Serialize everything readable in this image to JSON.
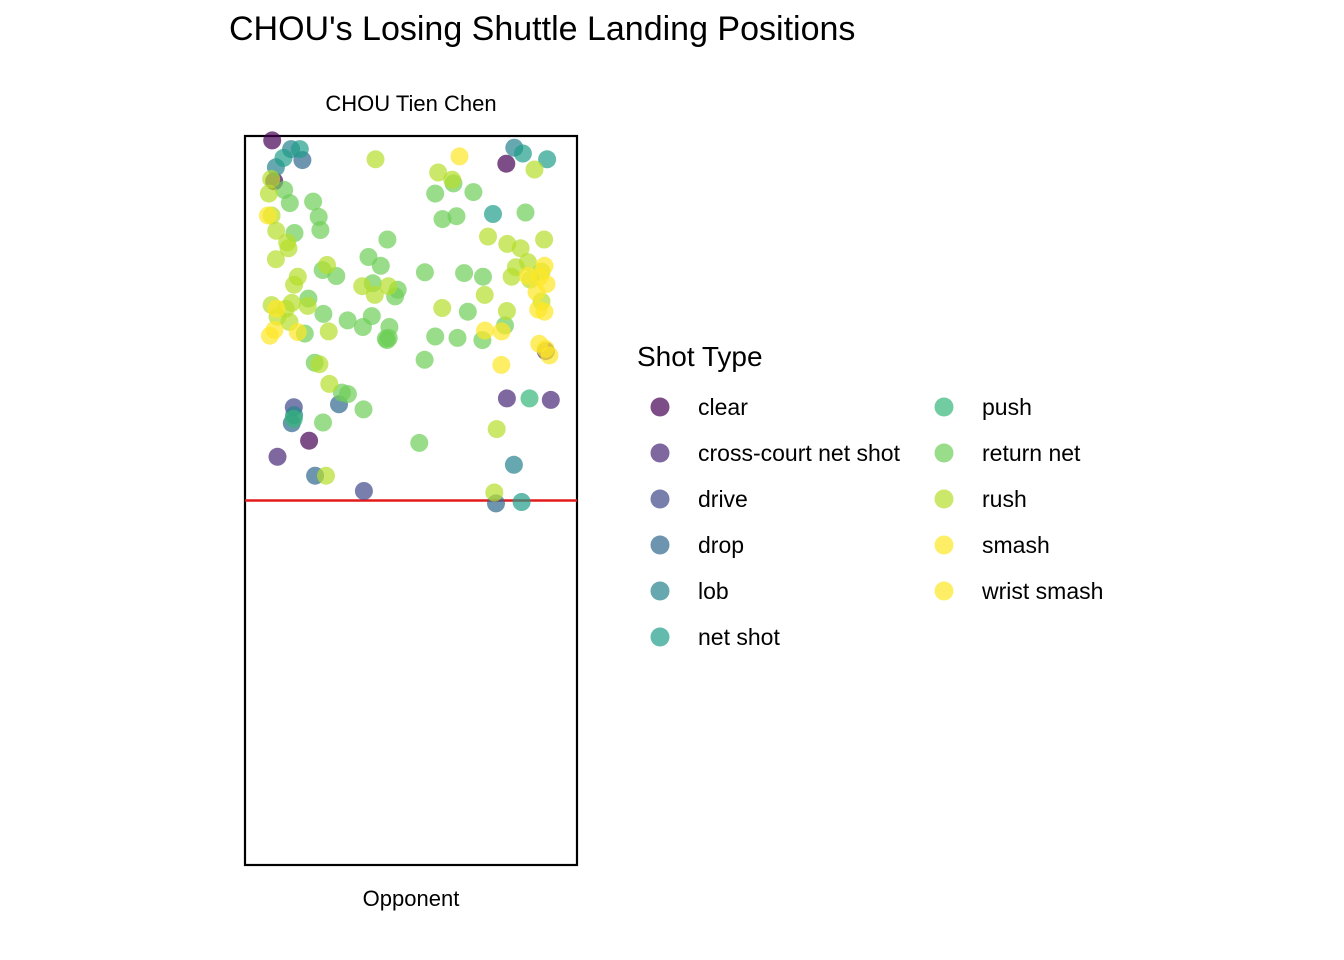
{
  "chart_data": {
    "type": "scatter",
    "title": "CHOU's Losing Shuttle Landing Positions",
    "top_label": "CHOU Tien Chen",
    "bottom_label": "Opponent",
    "xlim": [
      0,
      1
    ],
    "ylim": [
      0,
      1
    ],
    "net_y": 0.5,
    "net_color": "#e41a1c",
    "legend_title": "Shot Type",
    "categories": [
      {
        "name": "clear",
        "color": "#440154"
      },
      {
        "name": "cross-court net shot",
        "color": "#482878"
      },
      {
        "name": "drive",
        "color": "#3e4989"
      },
      {
        "name": "drop",
        "color": "#31688e"
      },
      {
        "name": "lob",
        "color": "#26828e"
      },
      {
        "name": "net shot",
        "color": "#1f9e89"
      },
      {
        "name": "push",
        "color": "#35b779"
      },
      {
        "name": "return net",
        "color": "#6ece58"
      },
      {
        "name": "rush",
        "color": "#b5de2b"
      },
      {
        "name": "smash",
        "color": "#fde725"
      },
      {
        "name": "wrist smash",
        "color": "#fde725"
      }
    ],
    "series": [
      {
        "name": "clear",
        "points": [
          [
            0.082,
            0.994
          ],
          [
            0.088,
            0.938
          ],
          [
            0.193,
            0.582
          ],
          [
            0.787,
            0.962
          ]
        ]
      },
      {
        "name": "cross-court net shot",
        "points": [
          [
            0.098,
            0.56
          ],
          [
            0.906,
            0.705
          ],
          [
            0.789,
            0.64
          ],
          [
            0.921,
            0.638
          ]
        ]
      },
      {
        "name": "drive",
        "points": [
          [
            0.147,
            0.628
          ],
          [
            0.358,
            0.513
          ]
        ]
      },
      {
        "name": "drop",
        "points": [
          [
            0.141,
            0.606
          ],
          [
            0.283,
            0.632
          ],
          [
            0.211,
            0.534
          ],
          [
            0.756,
            0.496
          ],
          [
            0.173,
            0.967
          ]
        ]
      },
      {
        "name": "lob",
        "points": [
          [
            0.093,
            0.957
          ],
          [
            0.139,
            0.982
          ],
          [
            0.811,
            0.984
          ],
          [
            0.148,
            0.617
          ],
          [
            0.81,
            0.549
          ]
        ]
      },
      {
        "name": "net shot",
        "points": [
          [
            0.165,
            0.982
          ],
          [
            0.837,
            0.976
          ],
          [
            0.91,
            0.968
          ],
          [
            0.747,
            0.893
          ],
          [
            0.833,
            0.498
          ],
          [
            0.116,
            0.97
          ]
        ]
      },
      {
        "name": "push",
        "points": [
          [
            0.857,
            0.64
          ],
          [
            0.147,
            0.612
          ]
        ]
      },
      {
        "name": "return net",
        "points": [
          [
            0.227,
            0.871
          ],
          [
            0.118,
            0.926
          ],
          [
            0.135,
            0.908
          ],
          [
            0.149,
            0.867
          ],
          [
            0.205,
            0.91
          ],
          [
            0.222,
            0.889
          ],
          [
            0.573,
            0.921
          ],
          [
            0.628,
            0.935
          ],
          [
            0.688,
            0.923
          ],
          [
            0.595,
            0.886
          ],
          [
            0.637,
            0.89
          ],
          [
            0.845,
            0.895
          ],
          [
            0.429,
            0.858
          ],
          [
            0.372,
            0.834
          ],
          [
            0.409,
            0.822
          ],
          [
            0.542,
            0.813
          ],
          [
            0.66,
            0.812
          ],
          [
            0.717,
            0.807
          ],
          [
            0.452,
            0.78
          ],
          [
            0.234,
            0.816
          ],
          [
            0.275,
            0.808
          ],
          [
            0.191,
            0.777
          ],
          [
            0.236,
            0.756
          ],
          [
            0.309,
            0.747
          ],
          [
            0.355,
            0.738
          ],
          [
            0.573,
            0.725
          ],
          [
            0.64,
            0.723
          ],
          [
            0.715,
            0.72
          ],
          [
            0.783,
            0.74
          ],
          [
            0.435,
            0.738
          ],
          [
            0.424,
            0.722
          ],
          [
            0.21,
            0.689
          ],
          [
            0.31,
            0.646
          ],
          [
            0.357,
            0.625
          ],
          [
            0.433,
            0.723
          ],
          [
            0.541,
            0.693
          ],
          [
            0.235,
            0.607
          ],
          [
            0.525,
            0.579
          ],
          [
            0.428,
            0.72
          ],
          [
            0.385,
            0.798
          ],
          [
            0.46,
            0.789
          ],
          [
            0.671,
            0.759
          ],
          [
            0.18,
            0.729
          ],
          [
            0.292,
            0.648
          ],
          [
            0.382,
            0.753
          ]
        ]
      },
      {
        "name": "rush",
        "points": [
          [
            0.079,
            0.941
          ],
          [
            0.072,
            0.921
          ],
          [
            0.08,
            0.891
          ],
          [
            0.094,
            0.87
          ],
          [
            0.127,
            0.854
          ],
          [
            0.093,
            0.831
          ],
          [
            0.131,
            0.846
          ],
          [
            0.159,
            0.807
          ],
          [
            0.247,
            0.823
          ],
          [
            0.353,
            0.794
          ],
          [
            0.391,
            0.782
          ],
          [
            0.432,
            0.794
          ],
          [
            0.393,
            0.968
          ],
          [
            0.582,
            0.95
          ],
          [
            0.624,
            0.94
          ],
          [
            0.872,
            0.954
          ],
          [
            0.732,
            0.862
          ],
          [
            0.79,
            0.852
          ],
          [
            0.83,
            0.846
          ],
          [
            0.852,
            0.827
          ],
          [
            0.893,
            0.814
          ],
          [
            0.901,
            0.858
          ],
          [
            0.803,
            0.807
          ],
          [
            0.722,
            0.782
          ],
          [
            0.789,
            0.76
          ],
          [
            0.594,
            0.764
          ],
          [
            0.141,
            0.771
          ],
          [
            0.08,
            0.768
          ],
          [
            0.098,
            0.752
          ],
          [
            0.123,
            0.763
          ],
          [
            0.134,
            0.745
          ],
          [
            0.148,
            0.796
          ],
          [
            0.189,
            0.767
          ],
          [
            0.252,
            0.732
          ],
          [
            0.254,
            0.66
          ],
          [
            0.224,
            0.687
          ],
          [
            0.758,
            0.598
          ],
          [
            0.751,
            0.511
          ],
          [
            0.244,
            0.534
          ],
          [
            0.816,
            0.82
          ],
          [
            0.859,
            0.803
          ],
          [
            0.893,
            0.773
          ]
        ]
      },
      {
        "name": "wrist smash",
        "points": [
          [
            0.646,
            0.972
          ],
          [
            0.069,
            0.891
          ],
          [
            0.095,
            0.763
          ],
          [
            0.089,
            0.734
          ],
          [
            0.075,
            0.726
          ],
          [
            0.159,
            0.731
          ],
          [
            0.878,
            0.786
          ],
          [
            0.888,
            0.807
          ],
          [
            0.902,
            0.822
          ],
          [
            0.908,
            0.797
          ],
          [
            0.883,
            0.762
          ],
          [
            0.902,
            0.759
          ],
          [
            0.886,
            0.715
          ],
          [
            0.905,
            0.708
          ],
          [
            0.917,
            0.699
          ],
          [
            0.723,
            0.733
          ],
          [
            0.773,
            0.732
          ],
          [
            0.772,
            0.686
          ],
          [
            0.852,
            0.808
          ]
        ]
      }
    ]
  }
}
